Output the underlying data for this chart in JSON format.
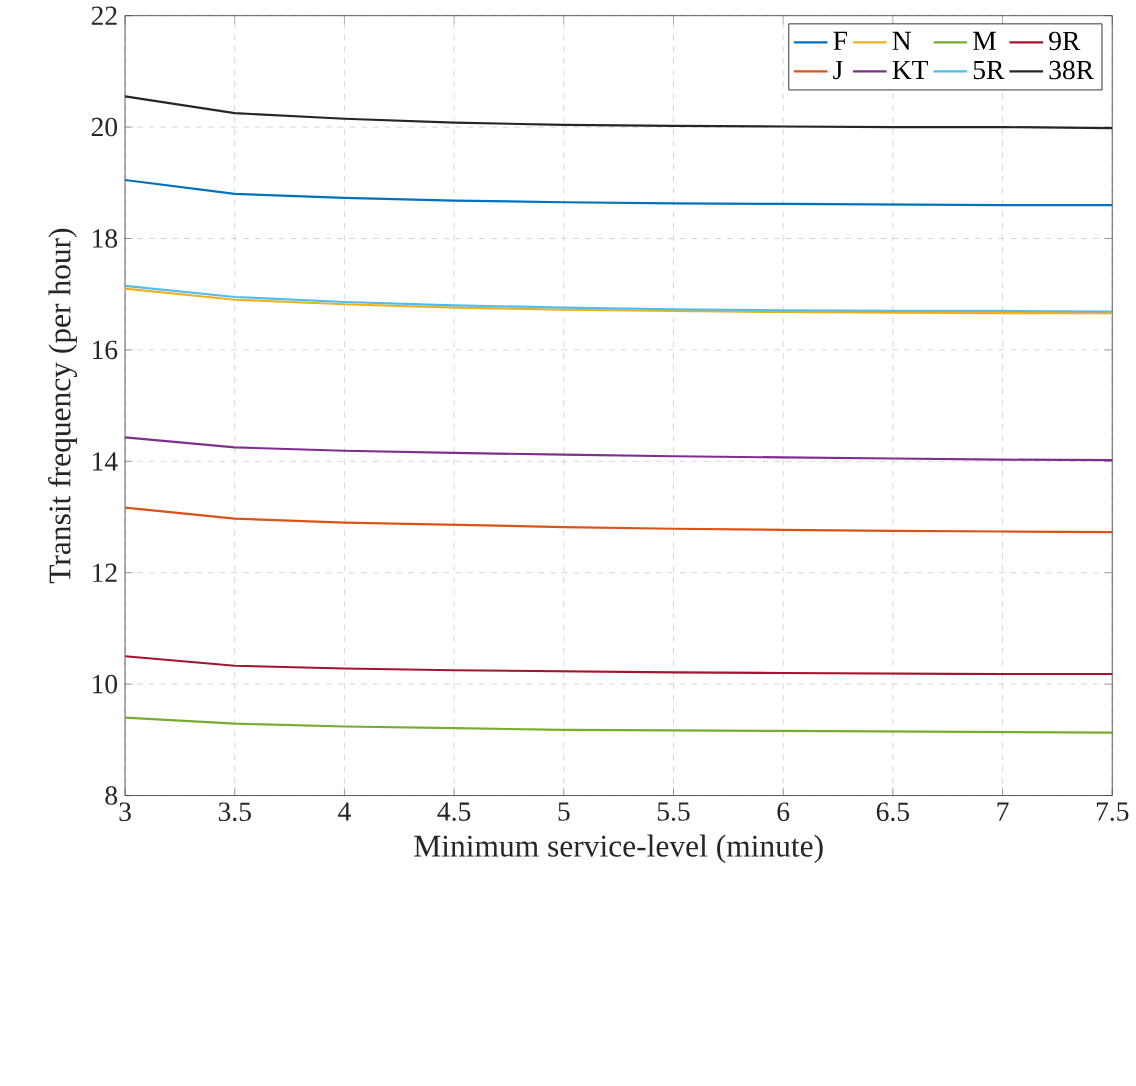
{
  "chart_data": {
    "type": "line",
    "xlabel": "Minimum service-level (minute)",
    "ylabel": "Transit frequency (per hour)",
    "x": [
      3,
      3.5,
      4,
      4.5,
      5,
      5.5,
      6,
      6.5,
      7,
      7.5
    ],
    "series": [
      {
        "name": "F",
        "color": "#0072bd",
        "values": [
          19.05,
          18.8,
          18.73,
          18.68,
          18.65,
          18.63,
          18.62,
          18.61,
          18.6,
          18.6
        ]
      },
      {
        "name": "N",
        "color": "#edb120",
        "values": [
          17.1,
          16.9,
          16.82,
          16.76,
          16.72,
          16.7,
          16.68,
          16.67,
          16.66,
          16.66
        ]
      },
      {
        "name": "M",
        "color": "#77ac30",
        "values": [
          9.4,
          9.29,
          9.24,
          9.21,
          9.18,
          9.17,
          9.16,
          9.15,
          9.14,
          9.13
        ]
      },
      {
        "name": "9R",
        "color": "#a2142f",
        "values": [
          10.5,
          10.33,
          10.28,
          10.25,
          10.23,
          10.21,
          10.2,
          10.19,
          10.18,
          10.18
        ]
      },
      {
        "name": "J",
        "color": "#d95319",
        "values": [
          13.17,
          12.97,
          12.9,
          12.86,
          12.82,
          12.79,
          12.77,
          12.75,
          12.74,
          12.73
        ]
      },
      {
        "name": "KT",
        "color": "#7e2f8e",
        "values": [
          14.43,
          14.25,
          14.19,
          14.15,
          14.12,
          14.09,
          14.07,
          14.05,
          14.03,
          14.02
        ]
      },
      {
        "name": "5R",
        "color": "#4dbeee",
        "values": [
          17.15,
          16.95,
          16.86,
          16.8,
          16.76,
          16.73,
          16.71,
          16.7,
          16.7,
          16.69
        ]
      },
      {
        "name": "38R",
        "color": "#262626",
        "values": [
          20.55,
          20.25,
          20.15,
          20.08,
          20.04,
          20.02,
          20.01,
          20.0,
          20.0,
          19.98
        ]
      }
    ],
    "xlim": [
      3,
      7.5
    ],
    "ylim": [
      8,
      22
    ],
    "xticks": [
      3,
      3.5,
      4,
      4.5,
      5,
      5.5,
      6,
      6.5,
      7,
      7.5
    ],
    "yticks": [
      8,
      10,
      12,
      14,
      16,
      18,
      20,
      22
    ],
    "grid": true,
    "legend": "top right",
    "marker": "none",
    "line_style": "solid"
  }
}
